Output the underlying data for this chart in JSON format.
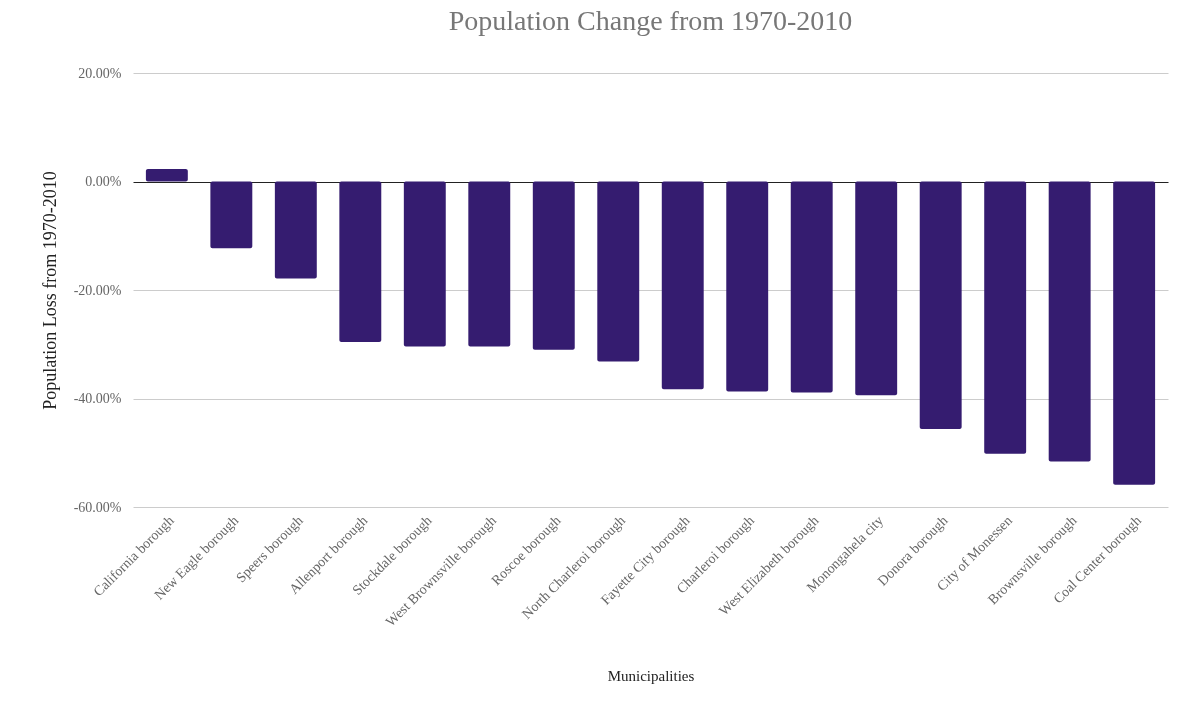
{
  "chart_data": {
    "type": "bar",
    "title": "Population Change from 1970-2010",
    "xlabel": "Municipalities",
    "ylabel": "Population Loss from 1970-2010",
    "categories": [
      "California borough",
      "New Eagle borough",
      "Speers borough",
      "Allenport borough",
      "Stockdale borough",
      "West Brownsville borough",
      "Roscoe borough",
      "North Charleroi borough",
      "Fayette City borough",
      "Charleroi borough",
      "West Elizabeth borough",
      "Monongahela city",
      "Donora borough",
      "City of Monessen",
      "Brownsville borough",
      "Coal Center borough"
    ],
    "values": [
      2.3,
      -12.3,
      -17.9,
      -29.6,
      -30.4,
      -30.4,
      -31.0,
      -33.2,
      -38.3,
      -38.7,
      -38.9,
      -39.4,
      -45.6,
      -50.2,
      -51.6,
      -55.9
    ],
    "color": "#351c70",
    "ylim": [
      -60,
      20
    ],
    "yticks": [
      {
        "value": -60,
        "label": "-60.00%"
      },
      {
        "value": -40,
        "label": "-40.00%"
      },
      {
        "value": -20,
        "label": "-20.00%"
      },
      {
        "value": 0,
        "label": "0.00%"
      },
      {
        "value": 20,
        "label": "20.00%"
      }
    ],
    "grid": "y"
  }
}
